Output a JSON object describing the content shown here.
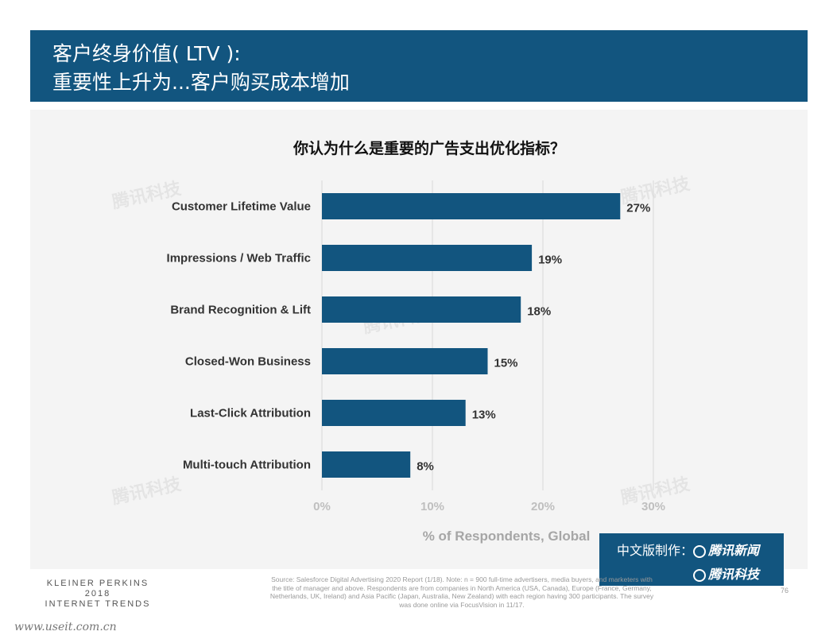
{
  "header": {
    "title_line1": "客户终身价值( LTV ):",
    "title_line2": "重要性上升为...客户购买成本增加"
  },
  "question": "你认为什么是重要的广告支出优化指标？",
  "chart_data": {
    "type": "bar",
    "orientation": "horizontal",
    "categories": [
      "Customer Lifetime Value",
      "Impressions / Web Traffic",
      "Brand Recognition & Lift",
      "Closed-Won Business",
      "Last-Click Attribution",
      "Multi-touch Attribution"
    ],
    "values": [
      27,
      19,
      18,
      15,
      13,
      8
    ],
    "value_labels": [
      "27%",
      "19%",
      "18%",
      "15%",
      "13%",
      "8%"
    ],
    "xlabel": "% of Respondents, Global",
    "xlim": [
      0,
      30
    ],
    "xticks": [
      "0%",
      "10%",
      "20%",
      "30%"
    ],
    "grid": true,
    "bar_color": "#12557f"
  },
  "credit": {
    "prefix": "中文版制作：",
    "brand1": "腾讯新闻",
    "brand2": "腾讯科技"
  },
  "footer": {
    "kp_line1": "KLEINER PERKINS",
    "kp_line2": "2018",
    "kp_line3": "INTERNET TRENDS",
    "source": "Source: Salesforce Digital Advertising 2020 Report (1/18). Note: n = 900 full-time advertisers, media buyers, and marketers with the title of manager and above. Respondents are from companies in North America (USA, Canada), Europe (France, Germany, Netherlands, UK, Ireland) and Asia Pacific (Japan, Australia, New Zealand) with each region having 300 participants. The survey was done online via FocusVision in 11/17.",
    "page_number": "76",
    "website": "www.useit.com.cn"
  },
  "watermark": "腾讯科技",
  "colors": {
    "brand": "#12557f",
    "panel": "#f4f4f4"
  }
}
